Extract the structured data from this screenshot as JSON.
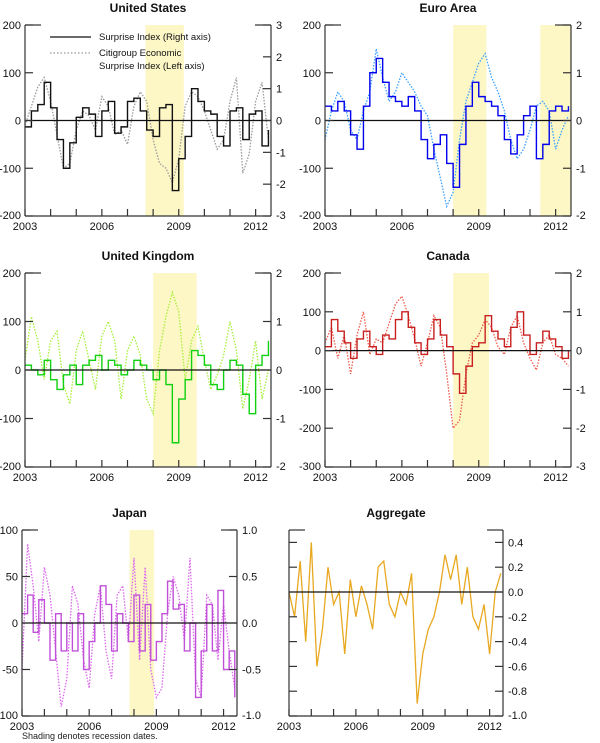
{
  "legend": {
    "solid": "Surprise Index (Right axis)",
    "dotted_line1": "Citigroup Economic",
    "dotted_line2": "Surprise Index (Left axis)"
  },
  "footnote": "Shading denotes recession dates.",
  "chart_data": [
    {
      "type": "line",
      "title": "United States",
      "xlim": [
        2003,
        2012.6
      ],
      "xticks": [
        "2003",
        "2006",
        "2009",
        "2012"
      ],
      "left_axis": {
        "range": [
          -200,
          200
        ],
        "ticks": [
          "-200",
          "-100",
          "0",
          "100",
          "200"
        ]
      },
      "right_axis": {
        "range": [
          -3,
          3
        ],
        "ticks": [
          "-3",
          "-2",
          "-1",
          "0",
          "1",
          "2",
          "3"
        ]
      },
      "recessions": [
        [
          2007.7,
          2009.2
        ]
      ],
      "x_start": 2003,
      "x_step": 0.25,
      "series": [
        {
          "name": "Citigroup Economic Surprise Index",
          "axis": "left",
          "style": "dotted",
          "color": "#9a9a9a",
          "values": [
            -10,
            30,
            70,
            90,
            40,
            -30,
            -100,
            -90,
            -20,
            20,
            10,
            -20,
            50,
            30,
            -30,
            -20,
            -50,
            30,
            60,
            40,
            -40,
            -90,
            -100,
            -130,
            -80,
            30,
            60,
            50,
            20,
            -20,
            -60,
            -40,
            40,
            90,
            -110,
            -70,
            40,
            80,
            -40
          ]
        },
        {
          "name": "Surprise Index",
          "axis": "right",
          "style": "solid",
          "color": "#111111",
          "values": [
            -0.2,
            0.3,
            0.5,
            1.2,
            0.4,
            -0.6,
            -1.5,
            -0.7,
            0.1,
            0.4,
            0.2,
            -0.5,
            0.3,
            0.6,
            -0.4,
            -0.2,
            0.6,
            0.7,
            0.3,
            -0.3,
            -0.5,
            0.4,
            0.5,
            -2.2,
            -1.2,
            -0.5,
            1.0,
            0.6,
            0.3,
            0.2,
            -0.5,
            -0.8,
            0.3,
            0.4,
            -0.6,
            0.2,
            0.3,
            -0.8,
            -0.3
          ]
        }
      ]
    },
    {
      "type": "line",
      "title": "Euro Area",
      "xlim": [
        2003,
        2012.6
      ],
      "xticks": [
        "2003",
        "2006",
        "2009",
        "2012"
      ],
      "left_axis": {
        "range": [
          -200,
          200
        ],
        "ticks": [
          "-200",
          "-100",
          "0",
          "100",
          "200"
        ]
      },
      "right_axis": {
        "range": [
          -2,
          2
        ],
        "ticks": [
          "-2",
          "-1",
          "0",
          "1",
          "2"
        ]
      },
      "recessions": [
        [
          2008.0,
          2009.3
        ],
        [
          2011.4,
          2012.6
        ]
      ],
      "x_start": 2003,
      "x_step": 0.25,
      "series": [
        {
          "name": "Citigroup Economic Surprise Index",
          "axis": "left",
          "style": "dotted",
          "color": "#3aa0ff",
          "values": [
            -40,
            20,
            60,
            40,
            -20,
            -40,
            20,
            60,
            150,
            90,
            40,
            60,
            100,
            80,
            60,
            30,
            10,
            -60,
            -120,
            -180,
            -150,
            -40,
            40,
            80,
            120,
            140,
            90,
            60,
            20,
            -40,
            -80,
            -60,
            -20,
            30,
            40,
            20,
            -60,
            -20,
            10
          ]
        },
        {
          "name": "Surprise Index",
          "axis": "right",
          "style": "solid",
          "color": "#0000ee",
          "values": [
            0.3,
            0.2,
            0.4,
            0.2,
            -0.3,
            -0.6,
            0.3,
            1.0,
            1.3,
            0.8,
            0.5,
            0.4,
            0.3,
            0.5,
            0.2,
            -0.4,
            -0.8,
            -0.5,
            -0.3,
            -0.9,
            -1.4,
            -0.5,
            0.3,
            0.8,
            0.5,
            0.4,
            0.3,
            0.1,
            -0.4,
            -0.7,
            -0.3,
            0.1,
            0.3,
            -0.8,
            -0.5,
            0.2,
            0.3,
            0.2,
            0.3
          ]
        }
      ]
    },
    {
      "type": "line",
      "title": "United Kingdom",
      "xlim": [
        2003,
        2012.6
      ],
      "xticks": [
        "2003",
        "2006",
        "2009",
        "2012"
      ],
      "left_axis": {
        "range": [
          -200,
          200
        ],
        "ticks": [
          "-200",
          "-100",
          "0",
          "100",
          "200"
        ]
      },
      "right_axis": {
        "range": [
          -2,
          2
        ],
        "ticks": [
          "-2",
          "-1",
          "0",
          "1",
          "2"
        ]
      },
      "recessions": [
        [
          2008.0,
          2009.7
        ]
      ],
      "x_start": 2003,
      "x_step": 0.25,
      "series": [
        {
          "name": "Citigroup Economic Surprise Index",
          "axis": "left",
          "style": "dotted",
          "color": "#a6ee3a",
          "values": [
            20,
            110,
            60,
            -20,
            60,
            80,
            -30,
            -70,
            40,
            80,
            20,
            -40,
            70,
            100,
            60,
            -60,
            40,
            70,
            30,
            -60,
            -90,
            40,
            110,
            160,
            120,
            -20,
            60,
            90,
            20,
            -40,
            -10,
            30,
            100,
            40,
            -80,
            -20,
            60,
            -60,
            0
          ]
        },
        {
          "name": "Surprise Index",
          "axis": "right",
          "style": "solid",
          "color": "#10d010",
          "values": [
            0.1,
            0.0,
            -0.1,
            0.2,
            -0.2,
            -0.4,
            -0.1,
            0.1,
            -0.3,
            0.1,
            0.2,
            0.3,
            0.0,
            0.2,
            0.1,
            -0.1,
            0.0,
            0.2,
            0.1,
            0.0,
            -0.2,
            0.0,
            -0.3,
            -1.5,
            -0.6,
            -0.2,
            0.4,
            0.3,
            0.1,
            -0.3,
            -0.4,
            0.0,
            0.2,
            0.1,
            -0.5,
            -0.9,
            0.1,
            0.3,
            0.6
          ]
        }
      ]
    },
    {
      "type": "line",
      "title": "Canada",
      "xlim": [
        2003,
        2012.6
      ],
      "xticks": [
        "2003",
        "2006",
        "2009",
        "2012"
      ],
      "left_axis": {
        "range": [
          -300,
          200
        ],
        "ticks": [
          "-300",
          "-200",
          "-100",
          "0",
          "100",
          "200"
        ]
      },
      "right_axis": {
        "range": [
          -3,
          2
        ],
        "ticks": [
          "-3",
          "-2",
          "-1",
          "0",
          "1",
          "2"
        ]
      },
      "recessions": [
        [
          2008.0,
          2009.4
        ]
      ],
      "x_start": 2003,
      "x_step": 0.25,
      "series": [
        {
          "name": "Citigroup Economic Surprise Index",
          "axis": "left",
          "style": "dotted",
          "color": "#ee5a4a",
          "values": [
            20,
            60,
            -20,
            40,
            -60,
            40,
            100,
            -10,
            30,
            20,
            70,
            120,
            140,
            90,
            30,
            -40,
            20,
            90,
            60,
            -60,
            -200,
            -180,
            -60,
            20,
            40,
            80,
            60,
            10,
            -10,
            60,
            90,
            20,
            -20,
            -50,
            20,
            40,
            -10,
            -20,
            -40
          ]
        },
        {
          "name": "Surprise Index",
          "axis": "right",
          "style": "solid",
          "color": "#c82020",
          "values": [
            0.1,
            0.8,
            0.5,
            0.2,
            -0.2,
            0.3,
            0.5,
            0.1,
            -0.1,
            0.4,
            0.3,
            0.8,
            1.0,
            0.6,
            0.2,
            -0.1,
            0.3,
            0.8,
            0.4,
            0.1,
            -0.6,
            -1.1,
            -0.4,
            0.1,
            0.2,
            0.9,
            0.5,
            0.3,
            0.1,
            0.6,
            1.0,
            0.4,
            -0.1,
            0.2,
            0.5,
            0.3,
            0.1,
            -0.2,
            0.0
          ]
        }
      ]
    },
    {
      "type": "line",
      "title": "Japan",
      "xlim": [
        2003,
        2012.6
      ],
      "xticks": [
        "2003",
        "2006",
        "2009",
        "2012"
      ],
      "left_axis": {
        "range": [
          -100,
          100
        ],
        "ticks": [
          "-100",
          "-50",
          "0",
          "50",
          "100"
        ]
      },
      "right_axis": {
        "range": [
          -1,
          1
        ],
        "ticks": [
          "-1.0",
          "-0.5",
          "0.0",
          "0.5",
          "1.0"
        ]
      },
      "recessions": [
        [
          2007.8,
          2008.9
        ]
      ],
      "x_start": 2003,
      "x_step": 0.25,
      "series": [
        {
          "name": "Citigroup Economic Surprise Index",
          "axis": "left",
          "style": "dotted",
          "color": "#dd66ee",
          "values": [
            -50,
            85,
            40,
            -20,
            60,
            30,
            -30,
            -90,
            -60,
            40,
            20,
            -40,
            -70,
            10,
            40,
            -30,
            -60,
            30,
            40,
            -20,
            70,
            -40,
            60,
            -50,
            -80,
            -70,
            10,
            50,
            30,
            -20,
            70,
            -60,
            -80,
            30,
            20,
            -40,
            20,
            -30,
            -70
          ]
        },
        {
          "name": "Surprise Index",
          "axis": "right",
          "style": "solid",
          "color": "#c050d8",
          "values": [
            0.1,
            0.3,
            -0.1,
            0.25,
            0.0,
            -0.4,
            0.1,
            -0.3,
            0.0,
            -0.3,
            0.1,
            -0.5,
            -0.2,
            0.0,
            0.4,
            0.2,
            -0.3,
            0.1,
            0.0,
            -0.2,
            0.3,
            -0.3,
            0.2,
            -0.4,
            -0.2,
            0.1,
            0.45,
            0.15,
            0.2,
            -0.3,
            0.0,
            -0.8,
            -0.3,
            0.2,
            -0.3,
            0.35,
            -0.5,
            -0.3,
            -0.8
          ]
        }
      ]
    },
    {
      "type": "line",
      "title": "Aggregate",
      "xlim": [
        2003,
        2012.6
      ],
      "xticks": [
        "2003",
        "2006",
        "2009",
        "2012"
      ],
      "left_axis": null,
      "right_axis": {
        "range": [
          -1,
          0.5
        ],
        "ticks": [
          "-1.0",
          "-0.8",
          "-0.6",
          "-0.4",
          "-0.2",
          "0.0",
          "0.2",
          "0.4"
        ]
      },
      "recessions": [],
      "x_start": 2003,
      "x_step": 0.25,
      "series": [
        {
          "name": "Aggregate Surprise Index",
          "axis": "right",
          "style": "line",
          "color": "#e8a820",
          "values": [
            0.0,
            -0.2,
            0.25,
            -0.4,
            0.4,
            -0.6,
            -0.3,
            0.2,
            -0.1,
            0.0,
            -0.5,
            0.1,
            -0.2,
            0.05,
            -0.1,
            -0.3,
            0.2,
            0.25,
            -0.1,
            -0.2,
            0.0,
            -0.1,
            0.15,
            -0.9,
            -0.5,
            -0.3,
            -0.2,
            0.0,
            0.3,
            0.1,
            0.3,
            -0.1,
            0.2,
            -0.2,
            -0.3,
            -0.1,
            -0.5,
            0.0,
            0.15
          ]
        }
      ]
    }
  ]
}
